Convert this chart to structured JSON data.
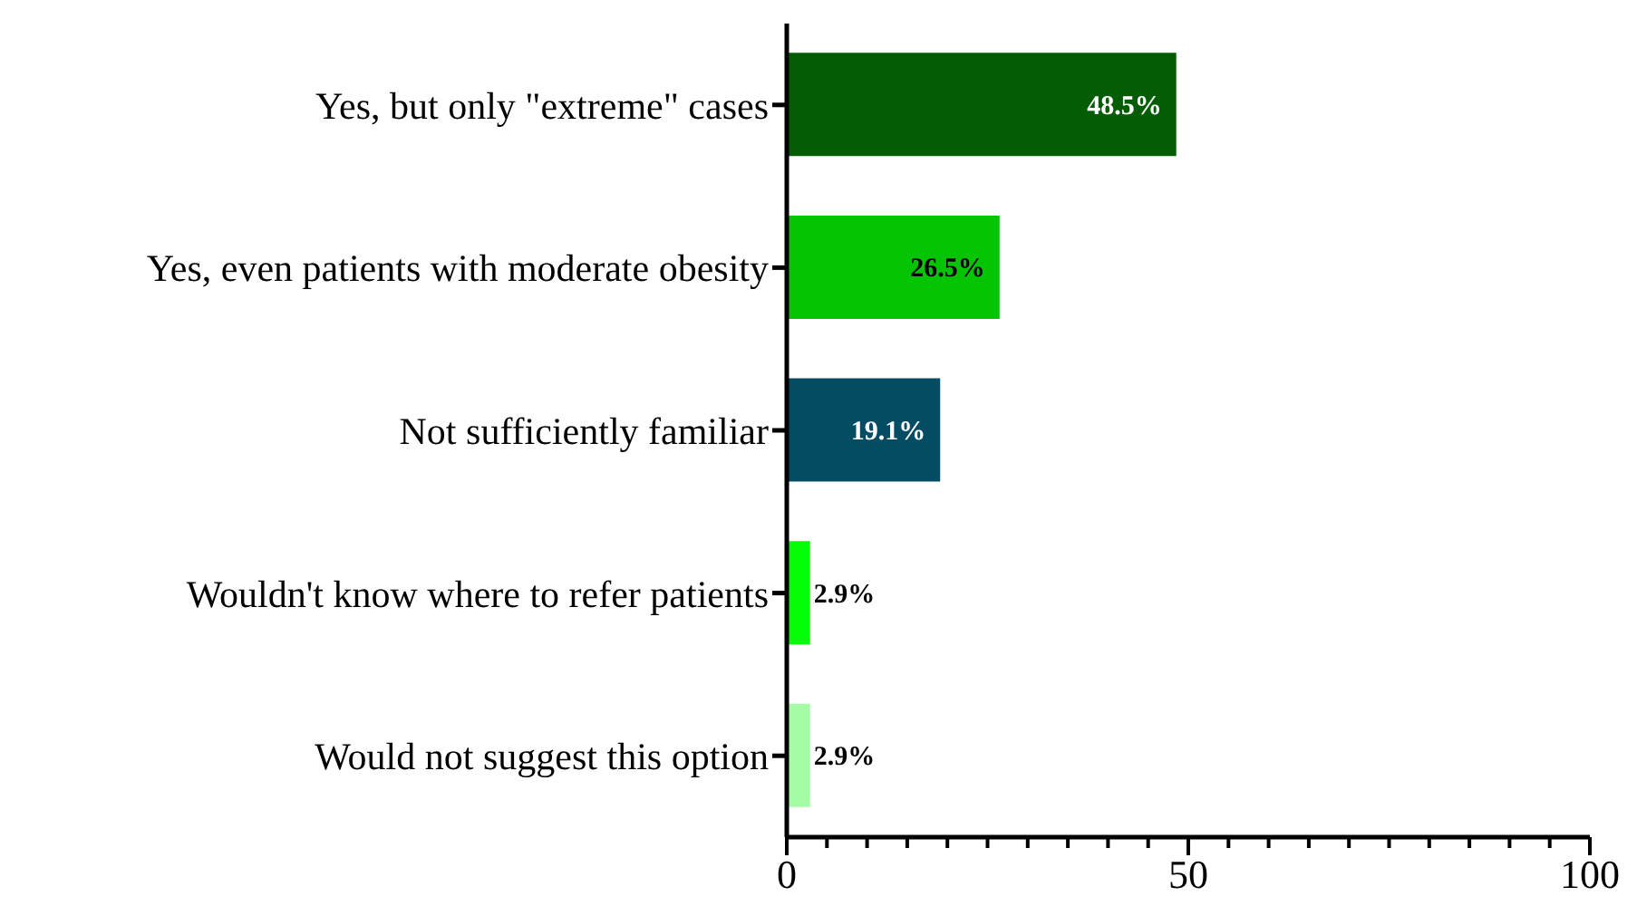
{
  "chart_data": {
    "type": "bar",
    "orientation": "horizontal",
    "categories": [
      "Yes, but only \"extreme\" cases",
      "Yes, even patients with moderate obesity",
      "Not sufficiently familiar",
      "Wouldn't know where to refer patients",
      "Would not suggest this option"
    ],
    "values": [
      48.5,
      26.5,
      19.1,
      2.9,
      2.9
    ],
    "colors": [
      "#045c04",
      "#04c404",
      "#044c64",
      "#04fc04",
      "#a4fca4"
    ],
    "value_labels": [
      "48.5%",
      "26.5%",
      "19.1%",
      "2.9%",
      "2.9%"
    ],
    "xlim": [
      0,
      100
    ],
    "xticks": [
      0,
      {
        "value": 5,
        "label": null
      },
      {
        "value": 10,
        "label": null
      },
      {
        "value": 15,
        "label": null
      },
      {
        "value": 20,
        "label": null
      },
      {
        "value": 25,
        "label": null
      },
      {
        "value": 30,
        "label": null
      },
      {
        "value": 35,
        "label": null
      },
      {
        "value": 40,
        "label": null
      },
      {
        "value": 45,
        "label": null
      },
      50,
      {
        "value": 55,
        "label": null
      },
      {
        "value": 60,
        "label": null
      },
      {
        "value": 65,
        "label": null
      },
      {
        "value": 70,
        "label": null
      },
      {
        "value": 75,
        "label": null
      },
      {
        "value": 80,
        "label": null
      },
      {
        "value": 85,
        "label": null
      },
      {
        "value": 90,
        "label": null
      },
      {
        "value": 95,
        "label": null
      },
      100
    ],
    "grid": false,
    "legend": false
  }
}
